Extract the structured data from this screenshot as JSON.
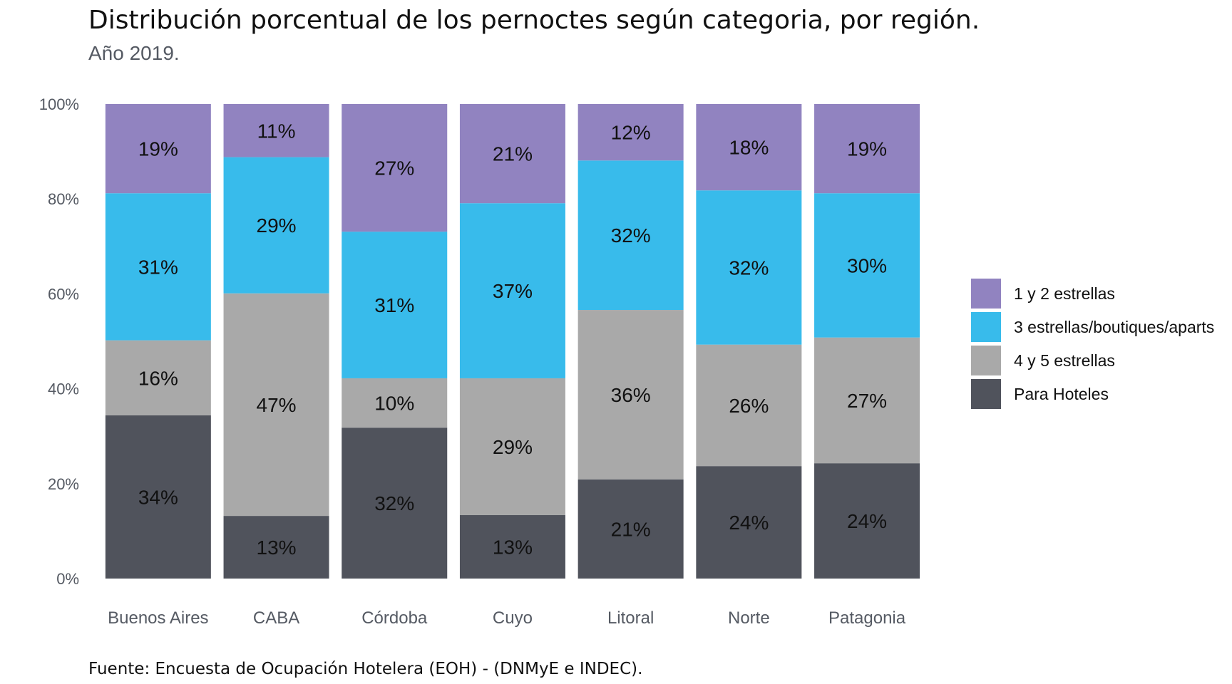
{
  "chart_data": {
    "type": "bar",
    "stacked": true,
    "title": "Distribución porcentual de los pernoctes según categoria, por región.",
    "subtitle": "Año 2019.",
    "caption": "Fuente: Encuesta de Ocupación Hotelera (EOH) - (DNMyE e INDEC).",
    "categories": [
      "Buenos Aires",
      "CABA",
      "Córdoba",
      "Cuyo",
      "Litoral",
      "Norte",
      "Patagonia"
    ],
    "ylim": [
      0,
      1
    ],
    "yticks": [
      {
        "value": 0,
        "label": "0%"
      },
      {
        "value": 0.2,
        "label": "20%"
      },
      {
        "value": 0.4,
        "label": "40%"
      },
      {
        "value": 0.6,
        "label": "60%"
      },
      {
        "value": 0.8,
        "label": "80%"
      },
      {
        "value": 1.0,
        "label": "100%"
      }
    ],
    "grid": false,
    "legend_position": "right",
    "series": [
      {
        "name": "Para Hoteles",
        "color": "#50535c",
        "values": [
          0.344,
          0.132,
          0.318,
          0.134,
          0.209,
          0.237,
          0.243
        ],
        "labels": [
          "34%",
          "13%",
          "32%",
          "13%",
          "21%",
          "24%",
          "24%"
        ]
      },
      {
        "name": "4 y 5 estrellas",
        "color": "#a9a9a9",
        "values": [
          0.158,
          0.469,
          0.104,
          0.288,
          0.357,
          0.256,
          0.265
        ],
        "labels": [
          "16%",
          "47%",
          "10%",
          "29%",
          "36%",
          "26%",
          "27%"
        ]
      },
      {
        "name": "3 estrellas/boutiques/aparts",
        "color": "#38bbeb",
        "values": [
          0.31,
          0.287,
          0.309,
          0.369,
          0.315,
          0.325,
          0.304
        ],
        "labels": [
          "31%",
          "29%",
          "31%",
          "37%",
          "32%",
          "32%",
          "30%"
        ]
      },
      {
        "name": "1 y 2 estrellas",
        "color": "#9183c0",
        "values": [
          0.188,
          0.112,
          0.269,
          0.209,
          0.119,
          0.182,
          0.188
        ],
        "labels": [
          "19%",
          "11%",
          "27%",
          "21%",
          "12%",
          "18%",
          "19%"
        ]
      }
    ],
    "legend_order": [
      "1 y 2 estrellas",
      "3 estrellas/boutiques/aparts",
      "4 y 5 estrellas",
      "Para Hoteles"
    ]
  }
}
